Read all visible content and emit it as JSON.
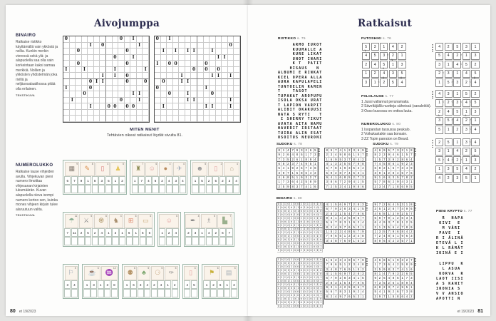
{
  "footer": {
    "issue": "et 19/2023",
    "left_number": "80",
    "right_number": "81"
  },
  "left_page": {
    "title": "Aivojumppa",
    "binairo": {
      "heading": "BINAIRO",
      "body": "Ratkaise ristikko käyttämällä vain ykkösiä ja nollia. Kunkin merkin vieressä sekä ylä- ja alapuolella saa olla vain korkeintaan kaksi samaa merkkiä. Nollien ja ykkösten yhdistelmän joka rivillä ja neljäsosalaatikossa pitää olla erilainen.",
      "credit": "TEKSTIKUVA",
      "grids": [
        [
          "0........0.1..",
          "....1.0.....1.",
          "..0.......0...",
          "........0..1..",
          "..0.......0...",
          "1..1....1....1",
          "......1.1.0...",
          "....011...0..0",
          "1...0.........",
          "...0.......11.",
          ".1.......0..1.",
          "....1..00.00..",
          "..............",
          ".............."
        ],
        [
          "0.1...........",
          "............0.",
          ".1.1.11..1....",
          "..........11..",
          "1.00....0.....",
          "......0.0.0...",
          "....1....11.1.",
          ".0..11........",
          "0.......1.....",
          "..0..1...0....",
          ".....11.....1.",
          ".1......11..1.",
          "..............",
          ".............."
        ]
      ]
    },
    "miten_menit": {
      "heading": "MITEN MENIT",
      "body": "Tehtävien oikeat ratkaisut löydät sivulta 81."
    },
    "numerolukko": {
      "heading": "NUMEROLUKKO",
      "body": "Ratkaise lause vihjeiden avulla. Vihjekuvan pieni numero ilmoittaa vihjesanan kirjainten lukumäärän. Kuvan alapuolella oleva isompi numero kertoo sen, kuinka mones vihjeen kirjain tulee alaruutuun valita.",
      "credit": "TEKSTIKUVA",
      "strips": [
        {
          "groups": [
            {
              "pictures": [
                {
                  "name": "tv",
                  "count": "9"
                },
                {
                  "name": "carrot",
                  "count": "8"
                },
                {
                  "name": "milk-carton",
                  "count": "4"
                },
                {
                  "name": "duck",
                  "count": "5"
                }
              ],
              "digits": [
                "6",
                "7",
                "9",
                "1",
                "8",
                "3",
                "5",
                "1",
                "2"
              ]
            },
            {
              "pictures": [
                {
                  "name": "city",
                  "count": "7"
                },
                {
                  "name": "pig",
                  "count": "6"
                },
                {
                  "name": "ball",
                  "count": "4"
                },
                {
                  "name": "paper-plane",
                  "count": "4"
                }
              ],
              "digits": [
                "1",
                "7",
                "4",
                "6",
                "2",
                "4",
                "3",
                "4"
              ]
            },
            {
              "pictures": [
                {
                  "name": "masks",
                  "count": "5"
                },
                {
                  "name": "door",
                  "count": "2"
                },
                {
                  "name": "house",
                  "count": "4"
                }
              ],
              "digits": [
                "1",
                "5",
                "2",
                "5",
                "2",
                "3",
                "4"
              ]
            }
          ]
        },
        {
          "groups": [
            {
              "pictures": [
                {
                  "name": "umbrella",
                  "count": "11"
                },
                {
                  "name": "sword",
                  "count": "5"
                },
                {
                  "name": "basket",
                  "count": "6"
                },
                {
                  "name": "donkey",
                  "count": "4"
                },
                {
                  "name": "window",
                  "count": "6"
                },
                {
                  "name": "rolling-pin",
                  "count": "6"
                }
              ],
              "digits": [
                "7",
                "11",
                "2",
                "5",
                "2",
                "4",
                "1",
                "3",
                "1",
                "6",
                "1",
                "5",
                "6"
              ]
            },
            {
              "pictures": [
                {
                  "name": "pig",
                  "count": "6"
                }
              ],
              "digits": [
                "1",
                "2",
                "4"
              ]
            },
            {
              "pictures": [
                {
                  "name": "brush",
                  "count": "4"
                },
                {
                  "name": "elephant",
                  "count": "5"
                },
                {
                  "name": "bar-chart",
                  "count": "7"
                }
              ],
              "digits": [
                "2",
                "3",
                "1",
                "4",
                "2",
                "6",
                "7"
              ]
            }
          ]
        },
        {
          "groups": [
            {
              "pictures": [
                {
                  "name": "france-map",
                  "count": "5"
                }
              ],
              "digits": [
                "3",
                "4"
              ]
            },
            {
              "pictures": [
                {
                  "name": "beer",
                  "count": "6"
                },
                {
                  "name": "geese",
                  "count": "12"
                }
              ],
              "digits": [
                "1",
                "3",
                "1",
                "3",
                "8"
              ]
            },
            {
              "pictures": [
                {
                  "name": "potatoes",
                  "count": "6"
                },
                {
                  "name": "jester",
                  "count": "5"
                },
                {
                  "name": "hat",
                  "count": "5"
                },
                {
                  "name": "knife",
                  "count": "5"
                }
              ],
              "digits": [
                "1",
                "6",
                "3",
                "4",
                "2",
                "4",
                "1",
                "2"
              ]
            },
            {
              "pictures": [
                {
                  "name": "door",
                  "count": "6"
                }
              ],
              "digits": [
                "4",
                "5"
              ]
            },
            {
              "pictures": [
                {
                  "name": "belgium-map",
                  "count": "6"
                },
                {
                  "name": "radio",
                  "count": "5"
                }
              ],
              "digits": [
                "1",
                "2",
                "6",
                "1",
                "3"
              ]
            }
          ]
        }
      ]
    }
  },
  "right_page": {
    "title": "Ratkaisut",
    "ristikko": {
      "label": "RISTIKKO",
      "page_ref": "s. 75",
      "rows": [
        "     ARMO EUROT",
        "     KUUMALLE A",
        "     KURE LIKAT",
        "     UNOT INARI",
        "     K T  PATIT",
        "    HISAUS   N ",
        "ALBUMI E RINKAT",
        "KIEL OPERA ALLA",
        "AURA KAPULAPELI",
        "TUNTOELIN RAMEN",
        "T    TASOT     ",
        "TUPAKAT AROPUPU",
        "ISOLA OKSA URAT",
        "T LAPION VARPIT",
        "ALIBIT OKAKUUSI",
        "NATA S RYTI   T",
        " I SHERRY TIKUT",
        "AVATA AITA NAMU",
        "HAVERIT IRSTAAT",
        "TUIRA ALIN ESAT",
        "OSOITUS NEURONI"
      ]
    },
    "futoshiki": {
      "label": "FUTOSHIKI",
      "page_ref": "s. 76",
      "grids": [
        {
          "rows": [
            "53142",
            "45321",
            "24513",
            "12435",
            "31254"
          ],
          "h": [
            "....",
            "..>.",
            "....",
            "....",
            ".<.."
          ],
          "v": [
            "v....",
            "...v.",
            "..v..",
            "..v.v"
          ]
        },
        {
          "rows": [
            "42531",
            "54213",
            "31452",
            "23145",
            "15324"
          ],
          "h": [
            "....",
            "..>.",
            "..<.",
            "<...",
            ".>.<"
          ],
          "v": [
            ".....",
            ".....",
            ".....",
            "....v"
          ]
        },
        {
          "rows": [
            "43152",
            "12345",
            "24513",
            "35421",
            "51234"
          ],
          "h": [
            "....",
            "<<<<",
            "....",
            ".>.>",
            "...<"
          ],
          "v": [
            ".....",
            ".....",
            "^..^.",
            "....."
          ]
        },
        {
          "rows": [
            "25134",
            "31425",
            "54213",
            "13542",
            "42351"
          ],
          "h": [
            "...<",
            "....",
            ">>>.",
            "....",
            "...."
          ],
          "v": [
            ".....",
            "....v",
            ".....",
            "....."
          ]
        }
      ]
    },
    "piilolause": {
      "label": "PIILOLAUSE",
      "page_ref": "s. 77",
      "lines": [
        "1 Jussi vallannut perunamaita.",
        "2 Säveltäjällä nuotteja säheissä (sanaleikki).",
        "3 Osso bucossa on onttoa luuta."
      ]
    },
    "numerolukko": {
      "label": "NUMEROLUKKO",
      "page_ref": "s. 80",
      "lines": [
        "1 Isopandan tassussa peukalo.",
        "2 Voikukastakin saa bonsain.",
        "3 ZZ Topin parraton on Beard."
      ]
    },
    "sudoku78": {
      "label": "SUDOKU",
      "page_ref": "s. 78",
      "grids": [
        [
          "814793265",
          "926485173",
          "735261894",
          "682374951",
          "541926738",
          "397158642",
          "468519327",
          "173642589",
          "259837416"
        ],
        [
          "857412369",
          "234986157",
          "169537842",
          "413256798",
          "678193524",
          "592874631",
          "941685273",
          "386729415",
          "725341986"
        ]
      ]
    },
    "sudoku79": {
      "label": "SUDOKU",
      "page_ref": "s. 79",
      "grids": [
        [
          "469573218",
          "823946157",
          "157392864",
          "745861923",
          "682157349",
          "391284576",
          "916435782",
          "578629431",
          "234718695"
        ],
        [
          "415697283",
          "679283415",
          "283154796",
          "931425867",
          "567831924",
          "824976531",
          "152348679",
          "796512348",
          "348769152"
        ],
        [
          "972645318",
          "351287496",
          "468139257",
          "587912634",
          "649378125",
          "213564789",
          "135796842",
          "724851963",
          "896423571"
        ],
        [
          "152348679",
          "796512348",
          "348769152",
          "415697283",
          "679283415",
          "283154796",
          "931425867",
          "567831924",
          "824976531"
        ],
        [
          "468519327",
          "173642589",
          "259837416",
          "814793265",
          "926485173",
          "735261894",
          "682374951",
          "541926738",
          "397158642"
        ]
      ]
    },
    "binairo_sol": {
      "label": "BINAIRO",
      "page_ref": "s. 80",
      "grids": [
        [
          "01101001011010",
          "10010110100101",
          "01011010010110",
          "10100101101001",
          "01101001010110",
          "10010110101001",
          "01100110010110",
          "10011001101001",
          "01100110010101",
          "10011001101010",
          "01010110011010",
          "10101001100101",
          "01010110011001",
          "10101001100110"
        ],
        [
          "10101001100110",
          "01010110011001",
          "10101001100101",
          "01010110011010",
          "10011001101010",
          "01100110010101",
          "10011001101001",
          "01100110010110",
          "10010110101001",
          "01101001010110",
          "10100101101001",
          "01011010010110",
          "10010110100101",
          "01101001011010"
        ]
      ]
    },
    "krypto": {
      "label": "PIENI KRYPTO",
      "page_ref": "s. 77",
      "block1": [
        "  R  NAPA",
        " KIVI  E ",
        "  M VÄRI ",
        " PAVE  I ",
        "R I ÄLINÄ",
        "ETEVÄ L I",
        "K L RÄMÄT",
        "IKINÄ E I"
      ],
      "block2": [
        " LIPPU  K",
        "  L ASUA ",
        " KORVA  R",
        "LAOT IISI",
        "A S KANIT",
        "IRONIA S ",
        "V V ANSIO",
        "APOTTI N "
      ]
    }
  }
}
